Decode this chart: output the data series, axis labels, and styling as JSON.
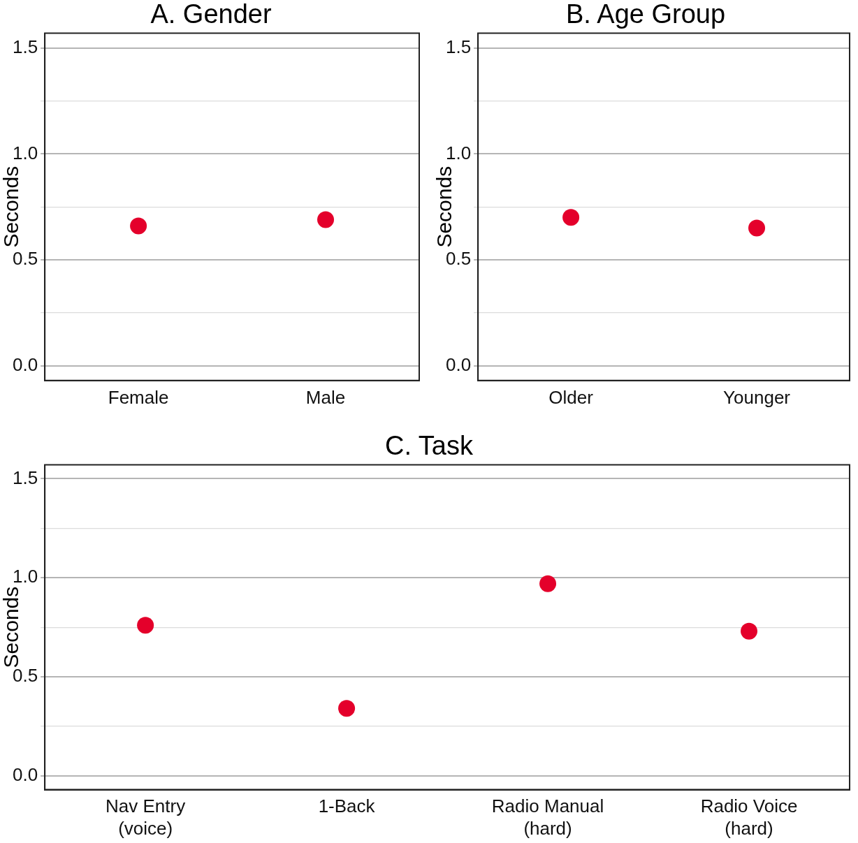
{
  "chart_data": [
    {
      "type": "scatter",
      "title": "A. Gender",
      "ylabel": "Seconds",
      "categories": [
        "Female",
        "Male"
      ],
      "values": [
        0.66,
        0.69
      ],
      "color": "#e4002b",
      "marker": "circle",
      "ylim": [
        -0.07,
        1.57
      ],
      "yticks": [
        {
          "value": 0,
          "label": "0.0"
        },
        {
          "value": 0.25,
          "label": null
        },
        {
          "value": 0.5,
          "label": "0.5"
        },
        {
          "value": 0.75,
          "label": null
        },
        {
          "value": 1,
          "label": "1.0"
        },
        {
          "value": 1.25,
          "label": null
        },
        {
          "value": 1.5,
          "label": "1.5"
        }
      ],
      "grid": "y",
      "legend": false
    },
    {
      "type": "scatter",
      "title": "B. Age Group",
      "ylabel": "Seconds",
      "categories": [
        "Older",
        "Younger"
      ],
      "values": [
        0.7,
        0.65
      ],
      "color": "#e4002b",
      "marker": "circle",
      "ylim": [
        -0.07,
        1.57
      ],
      "yticks": [
        {
          "value": 0,
          "label": "0.0"
        },
        {
          "value": 0.25,
          "label": null
        },
        {
          "value": 0.5,
          "label": "0.5"
        },
        {
          "value": 0.75,
          "label": null
        },
        {
          "value": 1,
          "label": "1.0"
        },
        {
          "value": 1.25,
          "label": null
        },
        {
          "value": 1.5,
          "label": "1.5"
        }
      ],
      "grid": "y",
      "legend": false
    },
    {
      "type": "scatter",
      "title": "C. Task",
      "ylabel": "Seconds",
      "categories": [
        "Nav Entry\n(voice)",
        "1-Back",
        "Radio Manual\n(hard)",
        "Radio Voice\n(hard)"
      ],
      "values": [
        0.76,
        0.34,
        0.97,
        0.73
      ],
      "color": "#e4002b",
      "marker": "circle",
      "ylim": [
        -0.07,
        1.57
      ],
      "yticks": [
        {
          "value": 0,
          "label": "0.0"
        },
        {
          "value": 0.25,
          "label": null
        },
        {
          "value": 0.5,
          "label": "0.5"
        },
        {
          "value": 0.75,
          "label": null
        },
        {
          "value": 1,
          "label": "1.0"
        },
        {
          "value": 1.25,
          "label": null
        },
        {
          "value": 1.5,
          "label": "1.5"
        }
      ],
      "grid": "y",
      "legend": false
    }
  ]
}
